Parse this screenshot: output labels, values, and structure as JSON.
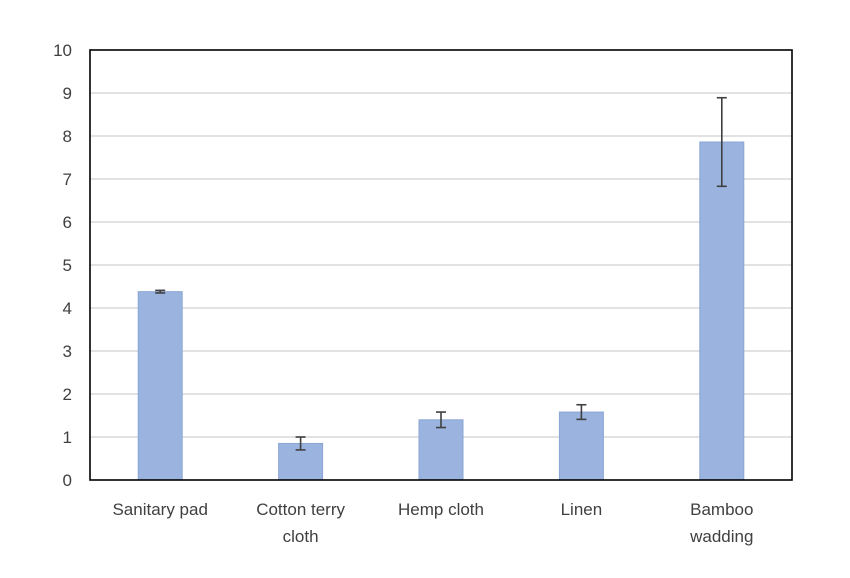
{
  "chart_data": {
    "type": "bar",
    "categories": [
      "Sanitary pad",
      "Cotton terry cloth",
      "Hemp cloth",
      "Linen",
      "Bamboo wadding"
    ],
    "values": [
      4.38,
      0.85,
      1.4,
      1.58,
      7.86
    ],
    "error": [
      0.03,
      0.15,
      0.18,
      0.17,
      1.03
    ],
    "ylim": [
      0,
      10
    ],
    "yticks": [
      "0",
      "1",
      "2",
      "3",
      "4",
      "5",
      "6",
      "7",
      "8",
      "9",
      "10"
    ],
    "grid": true,
    "colors": {
      "bar": "#9bb4df",
      "bar_stroke": "#8aa5d4",
      "grid": "#d9d9d9",
      "axis": "#000000",
      "errorbar": "#404040"
    }
  }
}
